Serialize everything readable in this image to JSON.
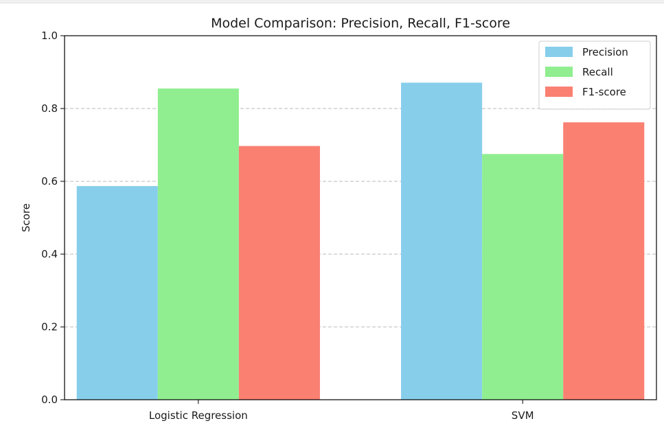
{
  "chart_data": {
    "type": "bar",
    "title": "Model Comparison: Precision, Recall, F1-score",
    "xlabel": "",
    "ylabel": "Score",
    "ylim": [
      0,
      1.0
    ],
    "yticks": [
      0.0,
      0.2,
      0.4,
      0.6,
      0.8,
      1.0
    ],
    "ytick_labels": [
      "0.0",
      "0.2",
      "0.4",
      "0.6",
      "0.8",
      "1.0"
    ],
    "categories": [
      "Logistic Regression",
      "SVM"
    ],
    "series": [
      {
        "name": "Precision",
        "color": "#87ceeb",
        "values": [
          0.587,
          0.871
        ]
      },
      {
        "name": "Recall",
        "color": "#90ee90",
        "values": [
          0.855,
          0.675
        ]
      },
      {
        "name": "F1-score",
        "color": "#fa8072",
        "values": [
          0.697,
          0.762
        ]
      }
    ],
    "grid": "y-dashed",
    "legend_position": "top-right"
  }
}
